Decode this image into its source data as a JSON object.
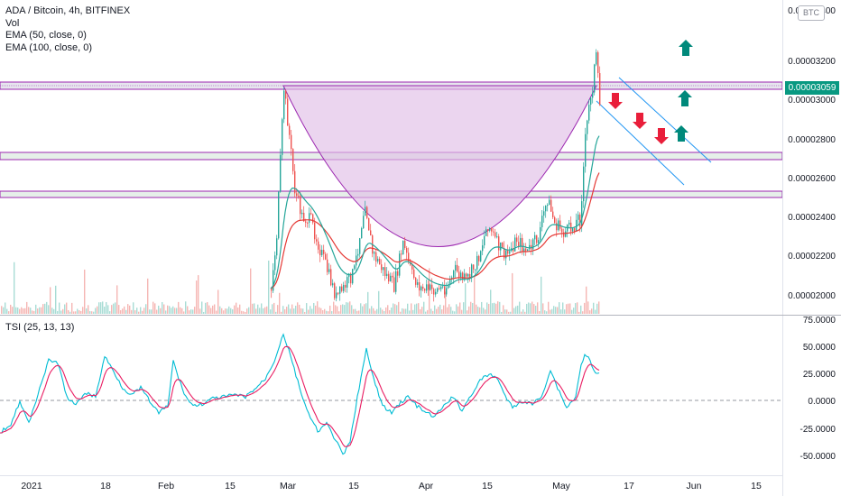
{
  "legend": {
    "symbol": "ADA / Bitcoin, 4h, BITFINEX",
    "vol": "Vol",
    "ema50": "EMA (50, close, 0)",
    "ema100": "EMA (100, close, 0)"
  },
  "currency_badge": "BTC",
  "last_price": "0.00003059",
  "tsi_label": "TSI (25, 13, 13)",
  "price_axis_labels": [
    "0.00003400",
    "0.00003200",
    "0.00003000",
    "0.00002800",
    "0.00002600",
    "0.00002400",
    "0.00002200",
    "0.00002000"
  ],
  "tsi_axis_labels": [
    "75.0000",
    "50.0000",
    "25.0000",
    "0.0000",
    "-25.0000",
    "-50.0000"
  ],
  "time_labels": [
    "2021",
    "18",
    "Feb",
    "15",
    "Mar",
    "15",
    "Apr",
    "15",
    "May",
    "17",
    "Jun",
    "15"
  ],
  "colors": {
    "up_candle": "#26a69a",
    "down_candle": "#ef5350",
    "cup_fill": "#e1bee7",
    "cup_stroke": "#9c27b0",
    "ema50": "#26a69a",
    "ema100": "#e53935",
    "tsi_line": "#00bcd4",
    "tsi_signal": "#e91e63",
    "channel": "#2196f3",
    "arrow_up": "#00897b",
    "arrow_down": "#e91e3a",
    "price_tag_bg": "#089981"
  },
  "chart_data": {
    "type": "candlestick",
    "title": "ADA / Bitcoin, 4h, BITFINEX",
    "y_range": [
      1.93e-05,
      3.5e-05
    ],
    "price_series_approx": [
      {
        "x": "Mar 1",
        "y": 3.2e-05
      },
      {
        "x": "Mar 15",
        "y": 2.2e-05
      },
      {
        "x": "Apr 1",
        "y": 2e-05
      },
      {
        "x": "Apr 15",
        "y": 2.2e-05
      },
      {
        "x": "May 1",
        "y": 2.5e-05
      },
      {
        "x": "May 10",
        "y": 3.18e-05
      },
      {
        "x": "last",
        "y": 3.059e-05
      }
    ],
    "tsi_y_range": [
      -60,
      75
    ]
  }
}
